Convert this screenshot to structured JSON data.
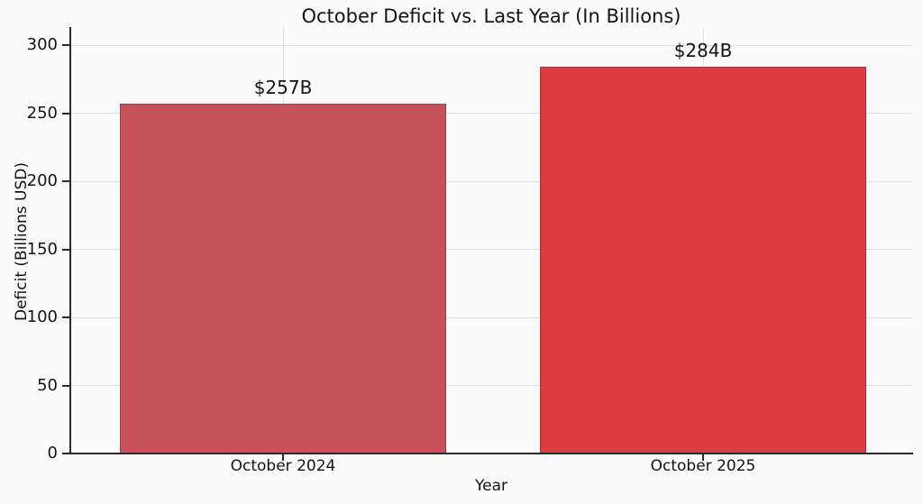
{
  "chart_data": {
    "type": "bar",
    "title": "October Deficit vs. Last Year (In Billions)",
    "xlabel": "Year",
    "ylabel": "Deficit (Billions USD)",
    "categories": [
      "October 2024",
      "October 2025"
    ],
    "values": [
      257,
      284
    ],
    "value_labels": [
      "$257B",
      "$284B"
    ],
    "bar_colors": [
      "#c5525b",
      "#de3a42"
    ],
    "yticks": [
      0,
      50,
      100,
      150,
      200,
      250,
      300
    ],
    "ylim": [
      0,
      313
    ],
    "grid": true,
    "legend": "none",
    "gridline_color": "#e1e1e1",
    "axis_color": "#2b2b2b",
    "text_color": "#141414",
    "background_color": "#fcfbfb"
  }
}
